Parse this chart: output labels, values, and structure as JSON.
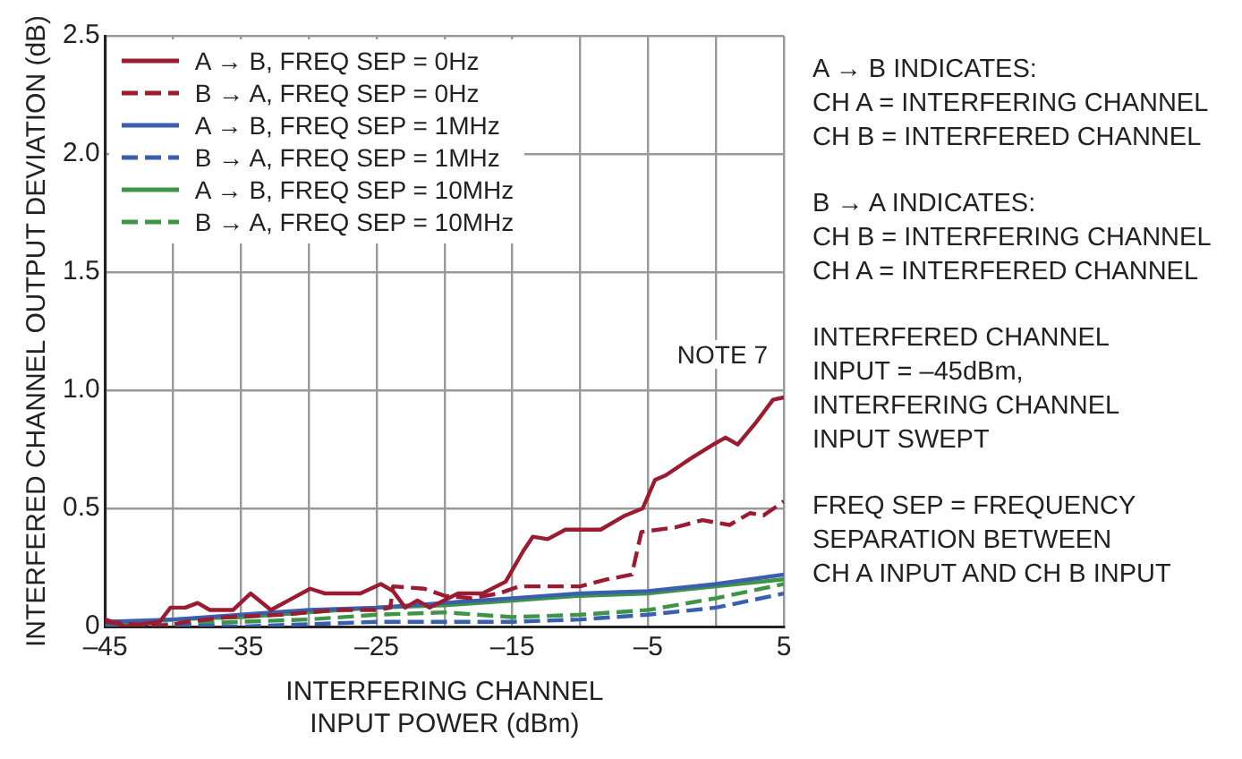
{
  "chart_data": {
    "type": "line",
    "xlabel": "INTERFERING CHANNEL\nINPUT POWER (dBm)",
    "ylabel": "INTERFERED CHANNEL OUTPUT DEVIATION (dB)",
    "xlim": [
      -45,
      5
    ],
    "xticks": [
      {
        "value": -45,
        "label": "–45"
      },
      {
        "value": -40,
        "label": null
      },
      {
        "value": -35,
        "label": "–35"
      },
      {
        "value": -30,
        "label": null
      },
      {
        "value": -25,
        "label": "–25"
      },
      {
        "value": -20,
        "label": null
      },
      {
        "value": -15,
        "label": "–15"
      },
      {
        "value": -10,
        "label": null
      },
      {
        "value": -5,
        "label": "–5"
      },
      {
        "value": 0,
        "label": null
      },
      5
    ],
    "ylim": [
      0,
      2.5
    ],
    "yticks": [
      0,
      0.5,
      {
        "value": 1,
        "label": "1.0"
      },
      1.5,
      {
        "value": 2,
        "label": "2.0"
      },
      2.5
    ],
    "grid": true,
    "legend": "top left",
    "marker": "none",
    "series": [
      {
        "name": "A → B, FREQ SEP = 0Hz",
        "color": "#9b1b30",
        "line_style": "solid",
        "x": [
          -45,
          -43.5,
          -41,
          -40.2,
          -39.1,
          -38.2,
          -37.3,
          -35.6,
          -34.3,
          -32.8,
          -31.2,
          -29.9,
          -28.8,
          -26.2,
          -24.7,
          -23.8,
          -22.9,
          -22,
          -21.1,
          -19,
          -17.2,
          -15.5,
          -14.2,
          -13.5,
          -12.4,
          -11.1,
          -8.5,
          -6.7,
          -5.4,
          -4.5,
          -3.7,
          -1.9,
          -0.2,
          0.7,
          1.6,
          2.9,
          4.2,
          5
        ],
        "values": [
          0.03,
          0.0,
          0.02,
          0.08,
          0.08,
          0.1,
          0.07,
          0.07,
          0.14,
          0.07,
          0.12,
          0.16,
          0.14,
          0.14,
          0.18,
          0.15,
          0.08,
          0.11,
          0.08,
          0.14,
          0.14,
          0.19,
          0.32,
          0.38,
          0.37,
          0.41,
          0.41,
          0.47,
          0.5,
          0.62,
          0.64,
          0.71,
          0.77,
          0.8,
          0.77,
          0.86,
          0.96,
          0.97
        ]
      },
      {
        "name": "B → A, FREQ SEP = 0Hz",
        "color": "#9b1b30",
        "line_style": "dashed",
        "x": [
          -45,
          -41,
          -39,
          -36,
          -32,
          -28,
          -25,
          -24,
          -23.8,
          -21.5,
          -20,
          -18,
          -16,
          -14.5,
          -10,
          -8,
          -6.2,
          -5.5,
          -3,
          -1,
          1,
          2.5,
          3.5,
          5
        ],
        "values": [
          0.02,
          0.0,
          0.02,
          0.04,
          0.05,
          0.07,
          0.07,
          0.08,
          0.17,
          0.16,
          0.13,
          0.12,
          0.14,
          0.17,
          0.17,
          0.2,
          0.22,
          0.4,
          0.42,
          0.45,
          0.43,
          0.48,
          0.47,
          0.53
        ]
      },
      {
        "name": "A → B, FREQ SEP = 1MHz",
        "color": "#3a5fae",
        "line_style": "solid",
        "x": [
          -45,
          -40,
          -35,
          -30,
          -25,
          -20,
          -15,
          -10,
          -5,
          0,
          5
        ],
        "values": [
          0.02,
          0.03,
          0.05,
          0.07,
          0.08,
          0.1,
          0.12,
          0.14,
          0.15,
          0.18,
          0.22
        ]
      },
      {
        "name": "B → A, FREQ SEP = 1MHz",
        "color": "#3a5fae",
        "line_style": "dashed",
        "x": [
          -45,
          -35,
          -30,
          -25,
          -20,
          -15,
          -10,
          -5,
          0,
          5
        ],
        "values": [
          0.01,
          0.0,
          0.01,
          0.02,
          0.02,
          0.02,
          0.03,
          0.05,
          0.08,
          0.14
        ]
      },
      {
        "name": "A → B, FREQ SEP = 10MHz",
        "color": "#3e9447",
        "line_style": "solid",
        "x": [
          -45,
          -40,
          -35,
          -30,
          -25,
          -20,
          -15,
          -10,
          -5,
          0,
          5
        ],
        "values": [
          0.01,
          0.03,
          0.04,
          0.06,
          0.08,
          0.09,
          0.11,
          0.13,
          0.14,
          0.17,
          0.2
        ]
      },
      {
        "name": "B → A, FREQ SEP = 10MHz",
        "color": "#3e9447",
        "line_style": "dashed",
        "x": [
          -45,
          -35,
          -30,
          -25,
          -20,
          -15,
          -10,
          -5,
          0,
          5
        ],
        "values": [
          0.0,
          0.02,
          0.03,
          0.05,
          0.06,
          0.04,
          0.05,
          0.07,
          0.12,
          0.18
        ]
      }
    ],
    "annotations": [
      {
        "text": "NOTE 7",
        "x": 5,
        "y": 0.97
      },
      "A → B INDICATES:\nCH A = INTERFERING CHANNEL\nCH B = INTERFERED CHANNEL",
      "B → A INDICATES:\nCH B = INTERFERING CHANNEL\nCH A = INTERFERED CHANNEL",
      "INTERFERED CHANNEL\nINPUT = –45dBm,\nINTERFERING CHANNEL\nINPUT SWEPT",
      "FREQ SEP = FREQUENCY\nSEPARATION BETWEEN\nCH A INPUT AND CH B INPUT"
    ]
  }
}
